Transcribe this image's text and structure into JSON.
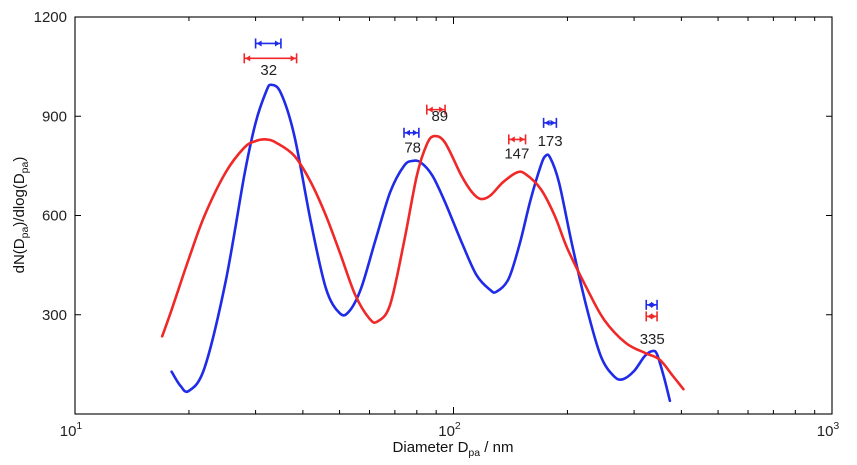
{
  "colors": {
    "blue": "#1f2be8",
    "red": "#f02828"
  },
  "chart_data": {
    "type": "line",
    "x_scale": "log",
    "xlim": [
      10,
      1000
    ],
    "ylim": [
      0,
      1200
    ],
    "x_ticks": [
      10,
      100,
      1000
    ],
    "x_tick_labels": [
      {
        "base": "10",
        "exp": "1"
      },
      {
        "base": "10",
        "exp": "2"
      },
      {
        "base": "10",
        "exp": "3"
      }
    ],
    "y_ticks": [
      300,
      600,
      900,
      1200
    ],
    "y_tick_labels": [
      "300",
      "600",
      "900",
      "1200"
    ],
    "xlabel": {
      "pre": "Diameter D",
      "sub": "pa",
      "post": " / nm"
    },
    "ylabel": {
      "p1": "dN(D",
      "s1": "pa",
      "p2": ")/dlog(D",
      "s2": "pa",
      "p3": ")"
    },
    "grid": false,
    "series": [
      {
        "color": "blue",
        "points": [
          [
            18,
            128
          ],
          [
            19,
            85
          ],
          [
            20,
            70
          ],
          [
            22,
            140
          ],
          [
            25,
            400
          ],
          [
            28,
            720
          ],
          [
            30,
            880
          ],
          [
            32,
            975
          ],
          [
            33,
            995
          ],
          [
            35,
            970
          ],
          [
            38,
            840
          ],
          [
            42,
            580
          ],
          [
            46,
            380
          ],
          [
            50,
            305
          ],
          [
            53,
            310
          ],
          [
            57,
            380
          ],
          [
            62,
            520
          ],
          [
            68,
            670
          ],
          [
            74,
            750
          ],
          [
            78,
            765
          ],
          [
            82,
            760
          ],
          [
            88,
            720
          ],
          [
            95,
            640
          ],
          [
            105,
            520
          ],
          [
            115,
            420
          ],
          [
            125,
            375
          ],
          [
            130,
            370
          ],
          [
            140,
            410
          ],
          [
            150,
            520
          ],
          [
            160,
            650
          ],
          [
            170,
            750
          ],
          [
            175,
            780
          ],
          [
            180,
            775
          ],
          [
            190,
            700
          ],
          [
            205,
            520
          ],
          [
            225,
            320
          ],
          [
            245,
            175
          ],
          [
            265,
            115
          ],
          [
            280,
            105
          ],
          [
            300,
            130
          ],
          [
            320,
            175
          ],
          [
            335,
            190
          ],
          [
            345,
            180
          ],
          [
            360,
            110
          ],
          [
            373,
            40
          ]
        ]
      },
      {
        "color": "red",
        "points": [
          [
            17,
            235
          ],
          [
            18,
            315
          ],
          [
            20,
            470
          ],
          [
            22,
            600
          ],
          [
            25,
            730
          ],
          [
            28,
            805
          ],
          [
            30,
            825
          ],
          [
            32,
            830
          ],
          [
            34,
            820
          ],
          [
            38,
            780
          ],
          [
            42,
            700
          ],
          [
            46,
            600
          ],
          [
            50,
            490
          ],
          [
            55,
            360
          ],
          [
            60,
            288
          ],
          [
            63,
            280
          ],
          [
            68,
            330
          ],
          [
            74,
            520
          ],
          [
            80,
            720
          ],
          [
            85,
            815
          ],
          [
            89,
            840
          ],
          [
            95,
            820
          ],
          [
            105,
            720
          ],
          [
            112,
            670
          ],
          [
            118,
            650
          ],
          [
            125,
            660
          ],
          [
            135,
            700
          ],
          [
            147,
            730
          ],
          [
            155,
            725
          ],
          [
            170,
            680
          ],
          [
            185,
            600
          ],
          [
            200,
            500
          ],
          [
            225,
            380
          ],
          [
            250,
            285
          ],
          [
            285,
            215
          ],
          [
            320,
            185
          ],
          [
            350,
            165
          ],
          [
            380,
            115
          ],
          [
            405,
            75
          ]
        ]
      }
    ],
    "peak_labels": [
      {
        "text": "32",
        "x": 32.5,
        "y": 1025
      },
      {
        "text": "78",
        "x": 78,
        "y": 790
      },
      {
        "text": "89",
        "x": 92,
        "y": 885
      },
      {
        "text": "147",
        "x": 147,
        "y": 773
      },
      {
        "text": "173",
        "x": 180,
        "y": 810
      },
      {
        "text": "335",
        "x": 335,
        "y": 212
      }
    ],
    "error_bars": [
      {
        "color": "blue",
        "x1": 30,
        "x2": 35,
        "y": 1120
      },
      {
        "color": "red",
        "x1": 28,
        "x2": 38.5,
        "y": 1075
      },
      {
        "color": "blue",
        "x1": 74,
        "x2": 81,
        "y": 850
      },
      {
        "color": "red",
        "x1": 85,
        "x2": 95,
        "y": 920
      },
      {
        "color": "red",
        "x1": 140,
        "x2": 155,
        "y": 830
      },
      {
        "color": "blue",
        "x1": 173,
        "x2": 187,
        "y": 880
      },
      {
        "color": "blue",
        "x1": 323,
        "x2": 345,
        "y": 330
      },
      {
        "color": "red",
        "x1": 323,
        "x2": 345,
        "y": 295
      }
    ]
  }
}
